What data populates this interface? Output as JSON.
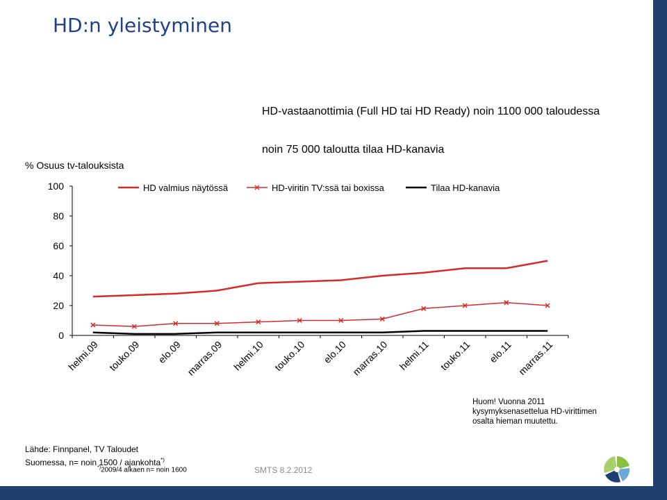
{
  "slide": {
    "title": "HD:n yleistyminen",
    "annotation_top": "HD-vastaanottimia (Full HD tai HD Ready)  noin 1100 000 taloudessa",
    "annotation_second": "noin 75 000 taloutta tilaa HD-kanavia",
    "note": "Huom! Vuonna 2011 kysymyksenasettelua HD-virittimen osalta hieman muutettu.",
    "source_line1": "Lähde: Finnpanel, TV Taloudet",
    "source_line2": "Suomessa, n= noin 1500 / ajankohta",
    "source_marker": "*)",
    "footnote_marker": "*)",
    "footnote_text": "2009/4 alkaen n= noin 1600",
    "footer": "SMTS 8.2.2012",
    "colors": {
      "title": "#1f3f88",
      "bar": "#1f3f6e",
      "red": "#d42a2a",
      "black": "#000000"
    },
    "logo_icon": "finnpanel-logo-icon"
  },
  "chart_data": {
    "type": "line",
    "ylabel": "% Osuus tv-talouksista",
    "ylim": [
      0,
      100
    ],
    "yticks": [
      0,
      20,
      40,
      60,
      80,
      100
    ],
    "categories": [
      "helmi.09",
      "touko.09",
      "elo.09",
      "marras.09",
      "helmi.10",
      "touko.10",
      "elo.10",
      "marras.10",
      "helmi.11",
      "touko.11",
      "elo.11",
      "marras.11"
    ],
    "legend_position": "top",
    "grid": false,
    "series": [
      {
        "name": "HD valmius näytössä",
        "color": "#d42a2a",
        "marker": "none",
        "values": [
          26,
          27,
          28,
          30,
          35,
          36,
          37,
          40,
          42,
          45,
          45,
          50
        ]
      },
      {
        "name": "HD-viritin TV:ssä tai boxissa",
        "color": "#d42a2a",
        "marker": "x",
        "values": [
          7,
          6,
          8,
          8,
          9,
          10,
          10,
          11,
          18,
          20,
          22,
          20
        ]
      },
      {
        "name": "Tilaa HD-kanavia",
        "color": "#000000",
        "marker": "none",
        "values": [
          2,
          1,
          1,
          2,
          2,
          2,
          2,
          2,
          3,
          3,
          3,
          3
        ]
      }
    ]
  }
}
